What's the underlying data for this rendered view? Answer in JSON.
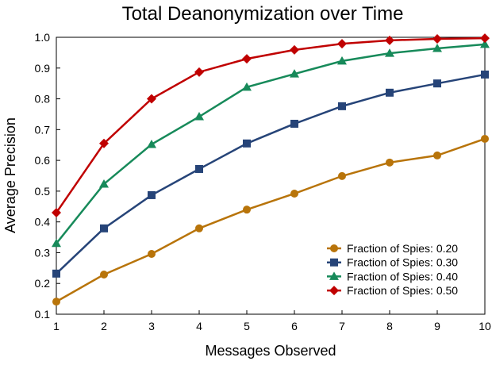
{
  "chart_data": {
    "type": "line",
    "title": "Total Deanonymization over Time",
    "xlabel": "Messages Observed",
    "ylabel": "Average Precision",
    "x": [
      1,
      2,
      3,
      4,
      5,
      6,
      7,
      8,
      9,
      10
    ],
    "xlim": [
      1,
      10
    ],
    "ylim": [
      0.1,
      1.0
    ],
    "xticks": [
      "1",
      "2",
      "3",
      "4",
      "5",
      "6",
      "7",
      "8",
      "9",
      "10"
    ],
    "yticks": [
      "0.1",
      "0.2",
      "0.3",
      "0.4",
      "0.5",
      "0.6",
      "0.7",
      "0.8",
      "0.9",
      "1.0"
    ],
    "grid": false,
    "legend_position": "bottom-right",
    "series": [
      {
        "name": "Fraction of Spies: 0.20",
        "color": "#B8740A",
        "marker": "circle",
        "values": [
          0.141,
          0.229,
          0.296,
          0.379,
          0.44,
          0.492,
          0.549,
          0.593,
          0.616,
          0.67
        ]
      },
      {
        "name": "Fraction of Spies: 0.30",
        "color": "#264478",
        "marker": "square",
        "values": [
          0.232,
          0.379,
          0.487,
          0.572,
          0.655,
          0.719,
          0.776,
          0.82,
          0.85,
          0.879
        ]
      },
      {
        "name": "Fraction of Spies: 0.40",
        "color": "#178A5A",
        "marker": "triangle",
        "values": [
          0.33,
          0.523,
          0.652,
          0.742,
          0.838,
          0.881,
          0.923,
          0.948,
          0.964,
          0.977
        ]
      },
      {
        "name": "Fraction of Spies: 0.50",
        "color": "#C00000",
        "marker": "diamond",
        "values": [
          0.43,
          0.655,
          0.8,
          0.887,
          0.93,
          0.959,
          0.979,
          0.99,
          0.995,
          0.997
        ]
      }
    ]
  }
}
